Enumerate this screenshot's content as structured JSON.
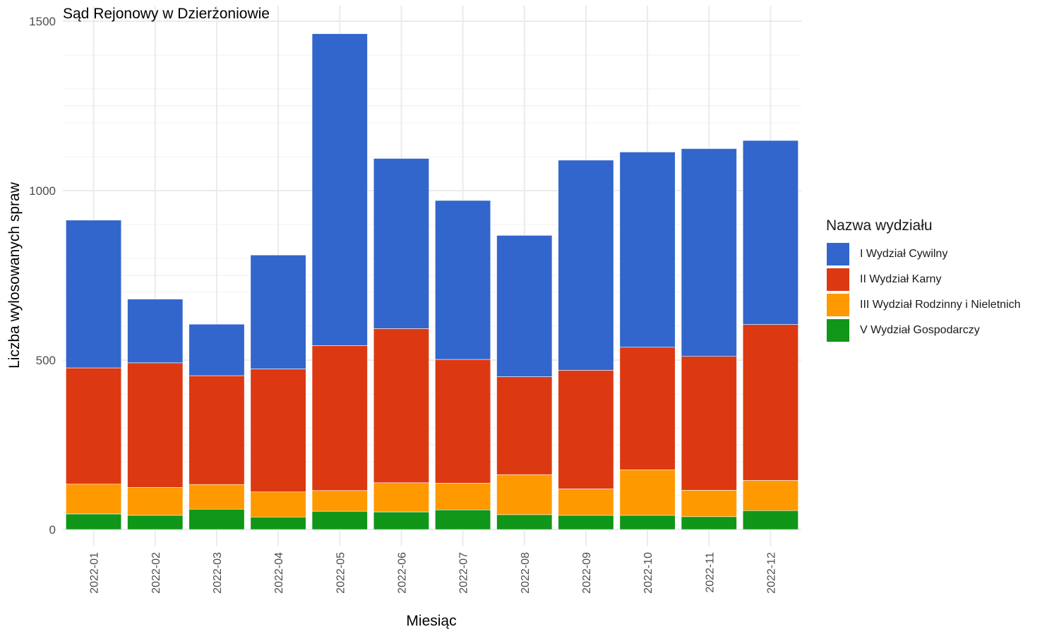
{
  "chart_data": {
    "type": "bar",
    "stacked": true,
    "title": "Sąd Rejonowy w Dzierżoniowie",
    "xlabel": "Miesiąc",
    "ylabel": "Liczba wylosowanych spraw",
    "ylim": [
      0,
      1500
    ],
    "yticks": [
      0,
      500,
      1000,
      1500
    ],
    "grid": true,
    "legend": {
      "title": "Nazwa wydziału",
      "position": "right"
    },
    "categories": [
      "2022-01",
      "2022-02",
      "2022-03",
      "2022-04",
      "2022-05",
      "2022-06",
      "2022-07",
      "2022-08",
      "2022-09",
      "2022-10",
      "2022-11",
      "2022-12"
    ],
    "series": [
      {
        "name": "V Wydział Gospodarczy",
        "color": "#109618",
        "values": [
          46,
          42,
          60,
          37,
          54,
          52,
          58,
          44,
          42,
          42,
          38,
          56
        ]
      },
      {
        "name": "III Wydział Rodzinny i Nieletnich",
        "color": "#FF9900",
        "values": [
          88,
          82,
          73,
          74,
          61,
          86,
          79,
          118,
          78,
          134,
          78,
          89
        ]
      },
      {
        "name": "II Wydział Karny",
        "color": "#DC3912",
        "values": [
          343,
          368,
          321,
          363,
          428,
          455,
          365,
          289,
          350,
          362,
          395,
          460
        ]
      },
      {
        "name": "I Wydział Cywilny",
        "color": "#3366CC",
        "values": [
          436,
          188,
          152,
          336,
          920,
          502,
          469,
          417,
          620,
          576,
          613,
          543
        ]
      }
    ]
  }
}
